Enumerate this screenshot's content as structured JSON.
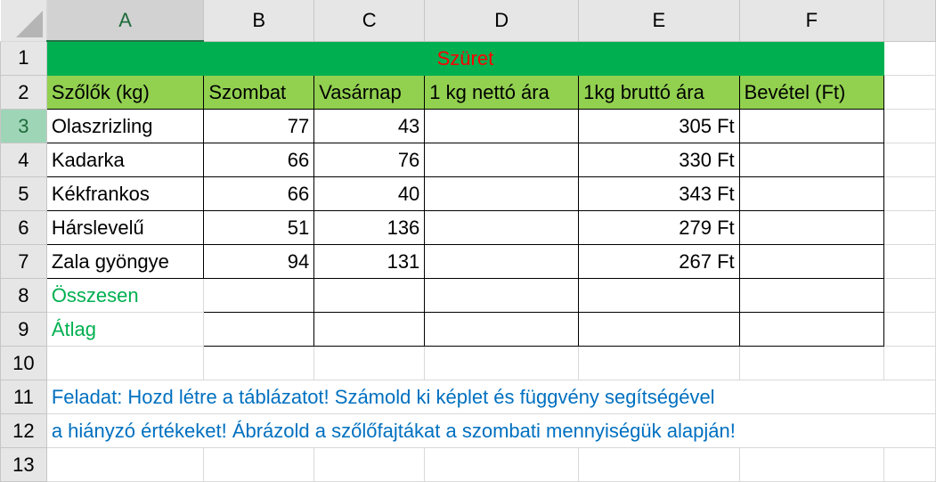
{
  "columns": [
    "A",
    "B",
    "C",
    "D",
    "E",
    "F",
    ""
  ],
  "rows": [
    "1",
    "2",
    "3",
    "4",
    "5",
    "6",
    "7",
    "8",
    "9",
    "10",
    "11",
    "12",
    "13"
  ],
  "selected_cell": "A3",
  "title": "Szüret",
  "headers": [
    "Szőlők (kg)",
    "Szombat",
    "Vasárnap",
    "1 kg nettó ára",
    "1kg bruttó ára",
    "Bevétel (Ft)"
  ],
  "data": [
    {
      "name": "Olaszrizling",
      "szombat": "77",
      "vasarnap": "43",
      "netto": "",
      "brutto": "305 Ft",
      "bevetel": ""
    },
    {
      "name": "Kadarka",
      "szombat": "66",
      "vasarnap": "76",
      "netto": "",
      "brutto": "330 Ft",
      "bevetel": ""
    },
    {
      "name": "Kékfrankos",
      "szombat": "66",
      "vasarnap": "40",
      "netto": "",
      "brutto": "343 Ft",
      "bevetel": ""
    },
    {
      "name": "Hárslevelű",
      "szombat": "51",
      "vasarnap": "136",
      "netto": "",
      "brutto": "279 Ft",
      "bevetel": ""
    },
    {
      "name": "Zala gyöngye",
      "szombat": "94",
      "vasarnap": "131",
      "netto": "",
      "brutto": "267 Ft",
      "bevetel": ""
    }
  ],
  "summary": [
    "Összesen",
    "Átlag"
  ],
  "task": [
    "Feladat: Hozd létre a táblázatot! Számold ki képlet és függvény segítségével",
    "a hiányzó értékeket! Ábrázold a szőlőfajtákat a szombati mennyiségük alapján!"
  ],
  "colors": {
    "title_bg": "#00b050",
    "title_text": "#ff0000",
    "header_bg": "#92d050",
    "summary_text": "#00b050",
    "task_text": "#0070c0"
  }
}
